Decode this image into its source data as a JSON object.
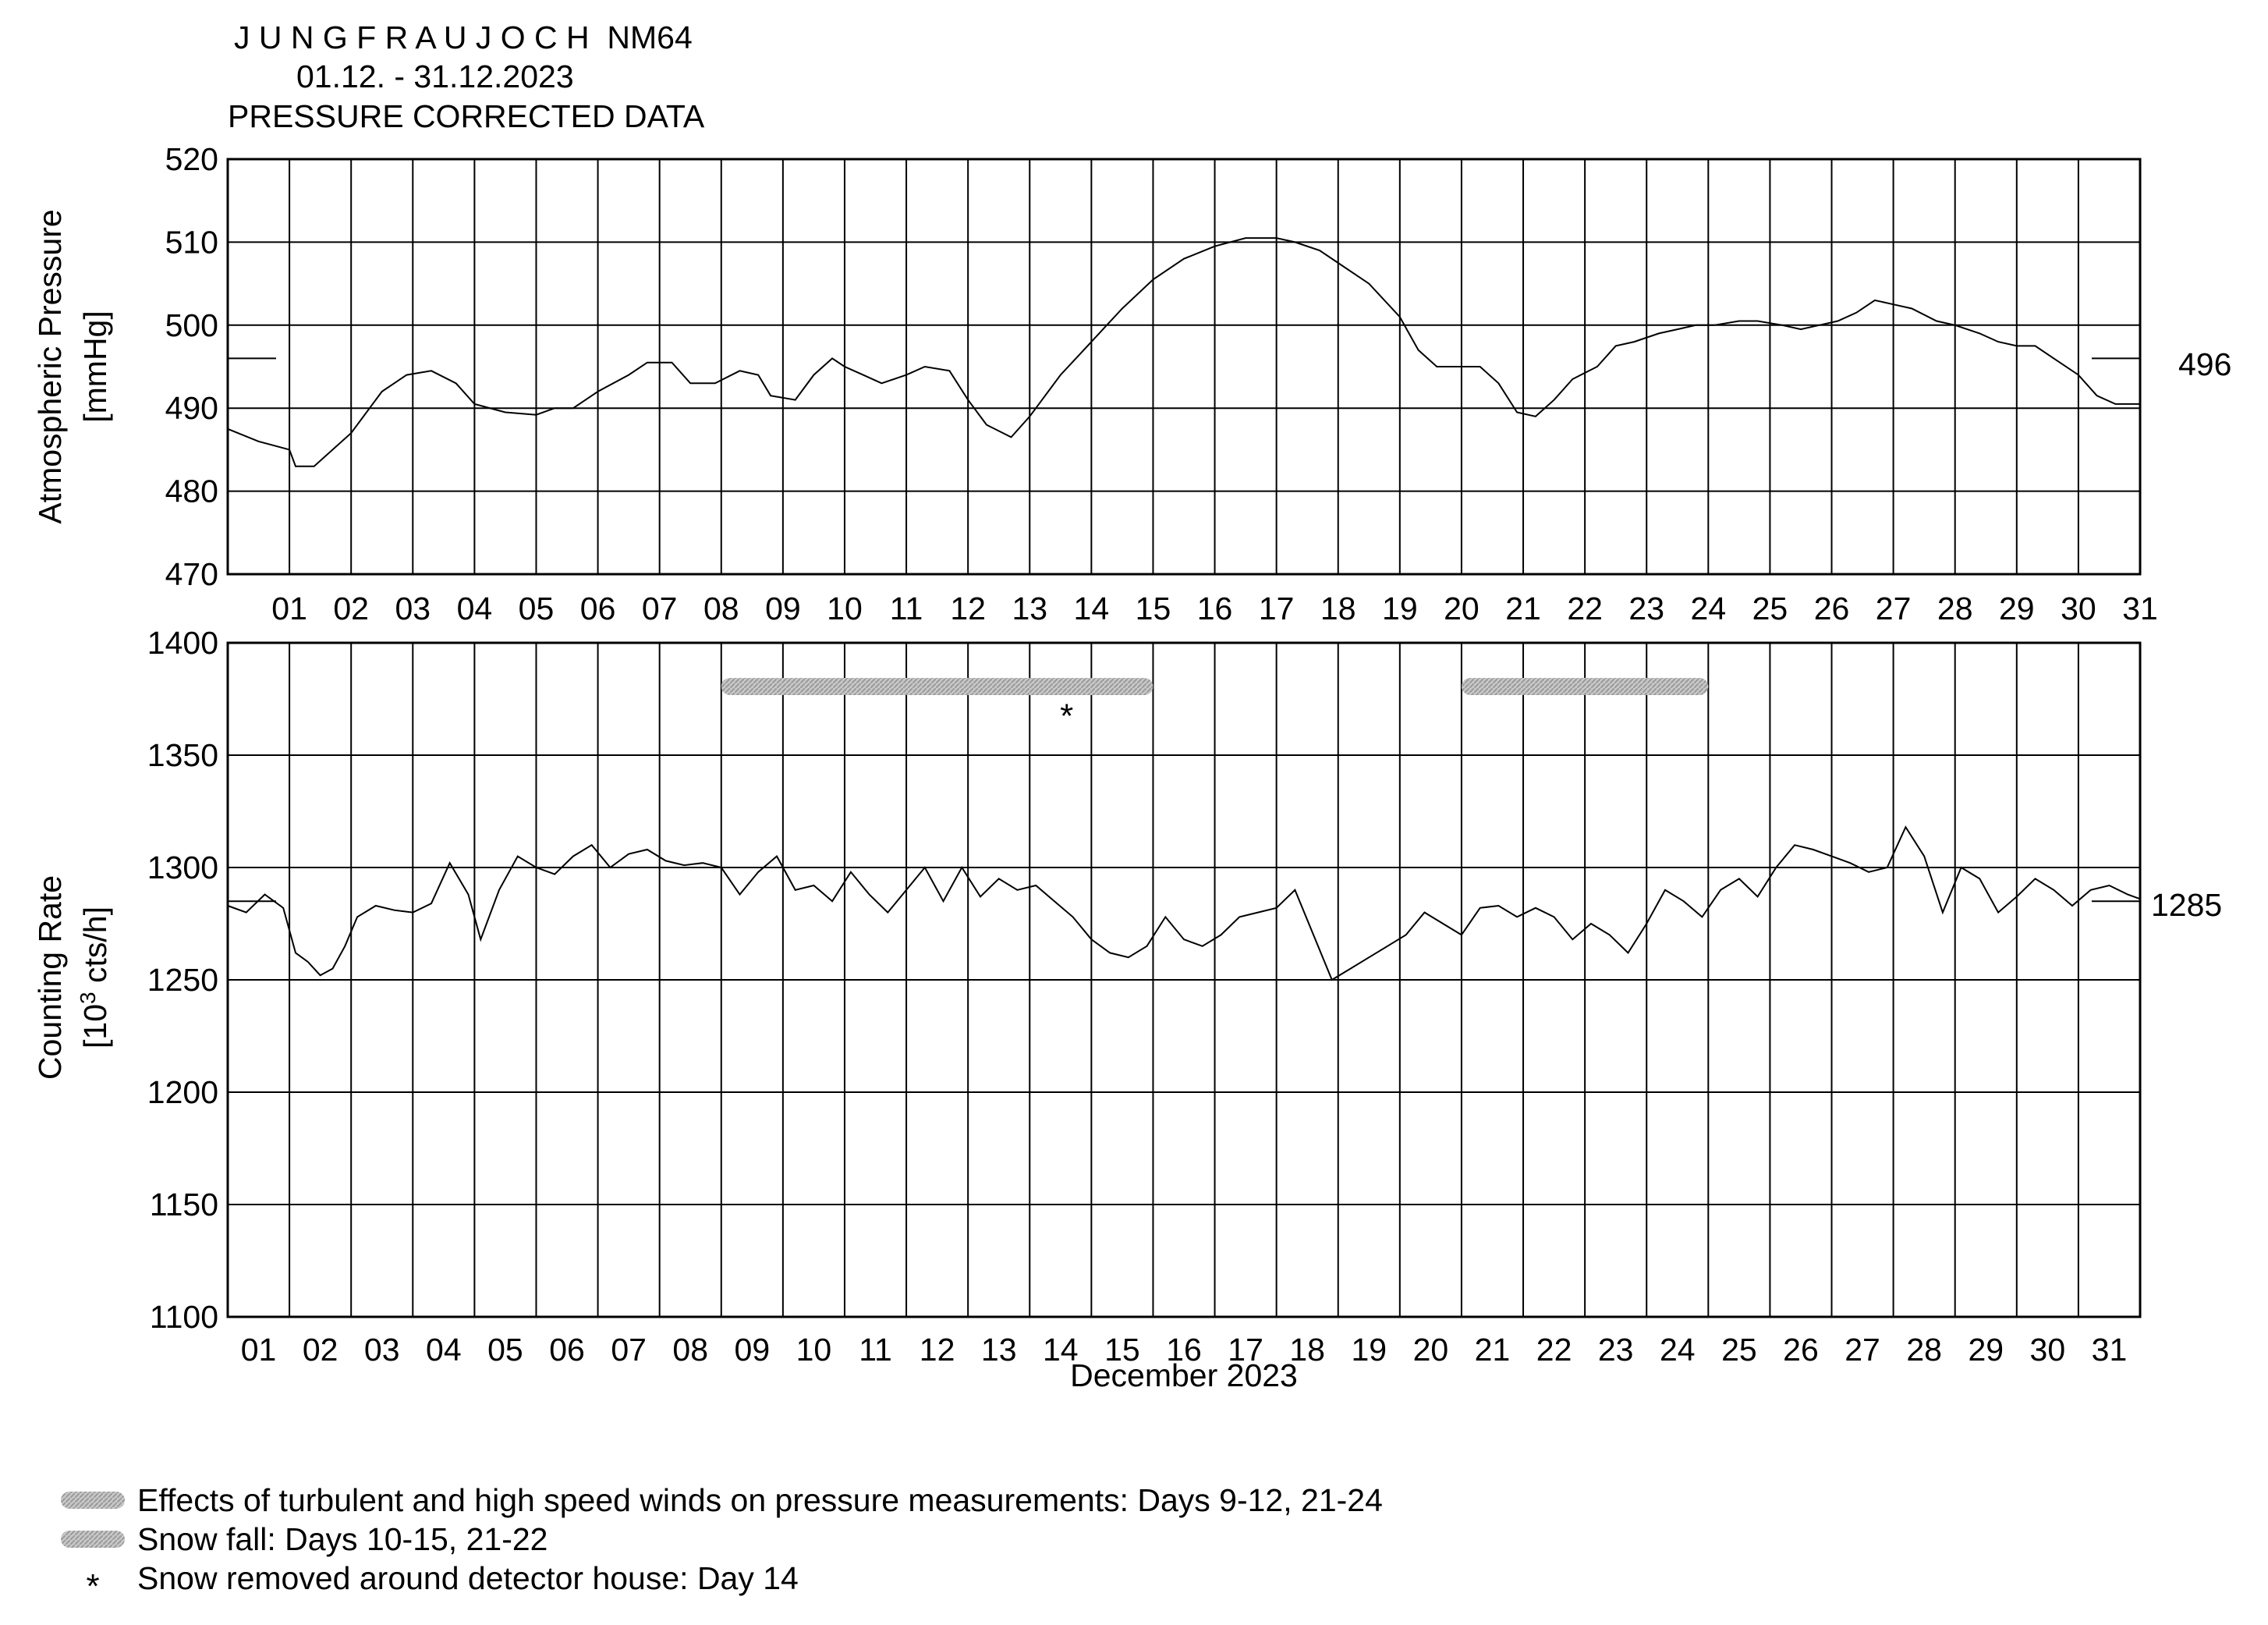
{
  "header": {
    "station": "J U N G F R A U J O C H  NM64",
    "period": "01.12. - 31.12.2023",
    "subtitle": "PRESSURE CORRECTED DATA"
  },
  "pressure_panel": {
    "ylabel": "Atmospheric Pressure",
    "yunit": "[mmHg]",
    "ref_label": "496"
  },
  "count_panel": {
    "ylabel": "Counting Rate",
    "yunit_pre": "[10",
    "yunit_sup": "3",
    "yunit_post": " cts/h]",
    "ref_label": "1285"
  },
  "xaxis_label": "December 2023",
  "legend": [
    {
      "symbol": "hatched-bar",
      "text": "Effects of turbulent and high speed winds on pressure measurements: Days 9-12, 21-24"
    },
    {
      "symbol": "hatched-bar",
      "text": "Snow fall: Days 10-15, 21-22"
    },
    {
      "symbol": "asterisk",
      "text": "Snow removed around detector house: Day 14"
    }
  ],
  "chart_data": [
    {
      "type": "line",
      "name": "pressure",
      "ylabel": "Atmospheric Pressure [mmHg]",
      "ylim": [
        470,
        520
      ],
      "yticks": [
        470,
        480,
        490,
        500,
        510,
        520
      ],
      "xlim": [
        0,
        31
      ],
      "xticks": [
        "01",
        "02",
        "03",
        "04",
        "05",
        "06",
        "07",
        "08",
        "09",
        "10",
        "11",
        "12",
        "13",
        "14",
        "15",
        "16",
        "17",
        "18",
        "19",
        "20",
        "21",
        "22",
        "23",
        "24",
        "25",
        "26",
        "27",
        "28",
        "29",
        "30",
        "31"
      ],
      "reference_value": 496,
      "grid": true,
      "x": [
        0,
        0.5,
        1.0,
        1.1,
        1.4,
        2.0,
        2.5,
        2.9,
        3.3,
        3.7,
        4.0,
        4.5,
        5.0,
        5.3,
        5.6,
        6.0,
        6.5,
        6.8,
        7.2,
        7.5,
        7.9,
        8.3,
        8.6,
        8.8,
        9.2,
        9.5,
        9.8,
        10.0,
        10.3,
        10.6,
        11.0,
        11.3,
        11.7,
        12.0,
        12.3,
        12.7,
        13.0,
        13.5,
        14.0,
        14.5,
        15.0,
        15.5,
        16.0,
        16.5,
        17.0,
        17.3,
        17.7,
        18.0,
        18.5,
        19.0,
        19.3,
        19.6,
        20.0,
        20.3,
        20.6,
        20.9,
        21.2,
        21.5,
        21.8,
        22.2,
        22.5,
        22.8,
        23.2,
        23.5,
        23.8,
        24.1,
        24.5,
        24.8,
        25.2,
        25.5,
        25.8,
        26.1,
        26.4,
        26.7,
        27.0,
        27.3,
        27.7,
        28.0,
        28.4,
        28.7,
        29.0,
        29.3,
        29.6,
        30.0,
        30.3,
        30.6,
        31.0
      ],
      "y": [
        487.5,
        486,
        485,
        483,
        483,
        487,
        492,
        494,
        494.5,
        493,
        490.5,
        489.5,
        489.2,
        490,
        490,
        492,
        494,
        495.5,
        495.5,
        493,
        493,
        494.5,
        494,
        491.5,
        491,
        494,
        496,
        495,
        494,
        493,
        494,
        495,
        494.5,
        491,
        488,
        486.5,
        489,
        494,
        498,
        502,
        505.5,
        508,
        509.5,
        510.5,
        510.5,
        510,
        509,
        507.5,
        505,
        501,
        497,
        495,
        495,
        495,
        493,
        489.5,
        489,
        491,
        493.5,
        495,
        497.5,
        498,
        499,
        499.5,
        500,
        500,
        500.5,
        500.5,
        500,
        499.5,
        500,
        500.5,
        501.5,
        503,
        502.5,
        502,
        500.5,
        500,
        499,
        498,
        497.5,
        497.5,
        496,
        494,
        491.5,
        490.5,
        490.5
      ]
    },
    {
      "type": "line",
      "name": "counting rate",
      "ylabel": "Counting Rate [10^3 cts/h]",
      "ylim": [
        1100,
        1400
      ],
      "yticks": [
        1100,
        1150,
        1200,
        1250,
        1300,
        1350,
        1400
      ],
      "xlim": [
        0,
        31
      ],
      "xticks": [
        "01",
        "02",
        "03",
        "04",
        "05",
        "06",
        "07",
        "08",
        "09",
        "10",
        "11",
        "12",
        "13",
        "14",
        "15",
        "16",
        "17",
        "18",
        "19",
        "20",
        "21",
        "22",
        "23",
        "24",
        "25",
        "26",
        "27",
        "28",
        "29",
        "30",
        "31"
      ],
      "xlabel": "December 2023",
      "reference_value": 1285,
      "grid": true,
      "x": [
        0,
        0.3,
        0.6,
        0.9,
        1.1,
        1.3,
        1.5,
        1.7,
        1.9,
        2.1,
        2.4,
        2.7,
        3.0,
        3.3,
        3.6,
        3.9,
        4.1,
        4.4,
        4.7,
        5.0,
        5.3,
        5.6,
        5.9,
        6.2,
        6.5,
        6.8,
        7.1,
        7.4,
        7.7,
        8.0,
        8.3,
        8.6,
        8.9,
        9.2,
        9.5,
        9.8,
        10.1,
        10.4,
        10.7,
        11.0,
        11.3,
        11.6,
        11.9,
        12.2,
        12.5,
        12.8,
        13.1,
        13.4,
        13.7,
        14.0,
        14.3,
        14.6,
        14.9,
        15.2,
        15.5,
        15.8,
        16.1,
        16.4,
        16.7,
        17.0,
        17.3,
        17.6,
        17.9,
        18.2,
        18.5,
        18.8,
        19.1,
        19.4,
        19.7,
        20.0,
        20.3,
        20.6,
        20.9,
        21.2,
        21.5,
        21.8,
        22.1,
        22.4,
        22.7,
        23.0,
        23.3,
        23.6,
        23.9,
        24.2,
        24.5,
        24.8,
        25.1,
        25.4,
        25.7,
        26.0,
        26.3,
        26.6,
        26.9,
        27.2,
        27.5,
        27.8,
        28.1,
        28.4,
        28.7,
        29.0,
        29.3,
        29.6,
        29.9,
        30.2,
        30.5,
        30.8,
        31.0
      ],
      "y": [
        1283,
        1280,
        1288,
        1282,
        1262,
        1258,
        1252,
        1255,
        1265,
        1278,
        1283,
        1281,
        1280,
        1284,
        1302,
        1288,
        1268,
        1290,
        1305,
        1300,
        1297,
        1305,
        1310,
        1300,
        1306,
        1308,
        1303,
        1301,
        1302,
        1300,
        1288,
        1298,
        1305,
        1290,
        1292,
        1285,
        1298,
        1288,
        1280,
        1290,
        1300,
        1285,
        1300,
        1287,
        1295,
        1290,
        1292,
        1285,
        1278,
        1268,
        1262,
        1260,
        1265,
        1278,
        1268,
        1265,
        1270,
        1278,
        1280,
        1282,
        1290,
        1270,
        1250,
        1255,
        1260,
        1265,
        1270,
        1280,
        1275,
        1270,
        1282,
        1283,
        1278,
        1282,
        1278,
        1268,
        1275,
        1270,
        1262,
        1275,
        1290,
        1285,
        1278,
        1290,
        1295,
        1287,
        1300,
        1310,
        1308,
        1305,
        1302,
        1298,
        1300,
        1318,
        1305,
        1280,
        1300,
        1295,
        1280,
        1287,
        1295,
        1290,
        1283,
        1290,
        1292,
        1288,
        1286
      ]
    }
  ],
  "annotations": {
    "hatched_bars": [
      [
        8.0,
        15.0
      ],
      [
        20.0,
        24.0
      ]
    ],
    "asterisk_day": 13.6,
    "asterisk_value": 1370
  }
}
